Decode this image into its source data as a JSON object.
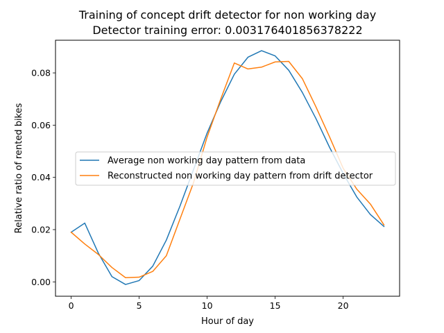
{
  "chart_data": {
    "type": "line",
    "title": "Training of concept drift detector for non working day",
    "subtitle": "Detector training error: 0.003176401856378222",
    "xlabel": "Hour of day",
    "ylabel": "Relative ratio of rented bikes",
    "xlim": [
      -1.15,
      24.15
    ],
    "ylim": [
      -0.0055,
      0.0925
    ],
    "xticks": [
      0,
      5,
      10,
      15,
      20
    ],
    "xtick_labels": [
      "0",
      "5",
      "10",
      "15",
      "20"
    ],
    "yticks": [
      0.0,
      0.02,
      0.04,
      0.06,
      0.08
    ],
    "ytick_labels": [
      "0.00",
      "0.02",
      "0.04",
      "0.06",
      "0.08"
    ],
    "grid": false,
    "legend_position": "center-left",
    "x": [
      0,
      1,
      2,
      3,
      4,
      5,
      6,
      7,
      8,
      9,
      10,
      11,
      12,
      13,
      14,
      15,
      16,
      17,
      18,
      19,
      20,
      21,
      22,
      23
    ],
    "series": [
      {
        "name": "Average non working day pattern from data",
        "color": "#1f77b4",
        "values": [
          0.019,
          0.0225,
          0.011,
          0.002,
          -0.001,
          0.0005,
          0.006,
          0.016,
          0.029,
          0.043,
          0.057,
          0.069,
          0.0795,
          0.086,
          0.0885,
          0.0865,
          0.081,
          0.0725,
          0.0625,
          0.0515,
          0.0415,
          0.0325,
          0.0258,
          0.0212
        ]
      },
      {
        "name": "Reconstructed non working day pattern from drift detector",
        "color": "#ff7f0e",
        "values": [
          0.019,
          0.0145,
          0.0105,
          0.0055,
          0.0016,
          0.0018,
          0.004,
          0.01,
          0.024,
          0.038,
          0.0555,
          0.07,
          0.0838,
          0.0815,
          0.0822,
          0.0842,
          0.0844,
          0.0778,
          0.067,
          0.0555,
          0.0435,
          0.0355,
          0.0298,
          0.0218
        ]
      }
    ]
  }
}
